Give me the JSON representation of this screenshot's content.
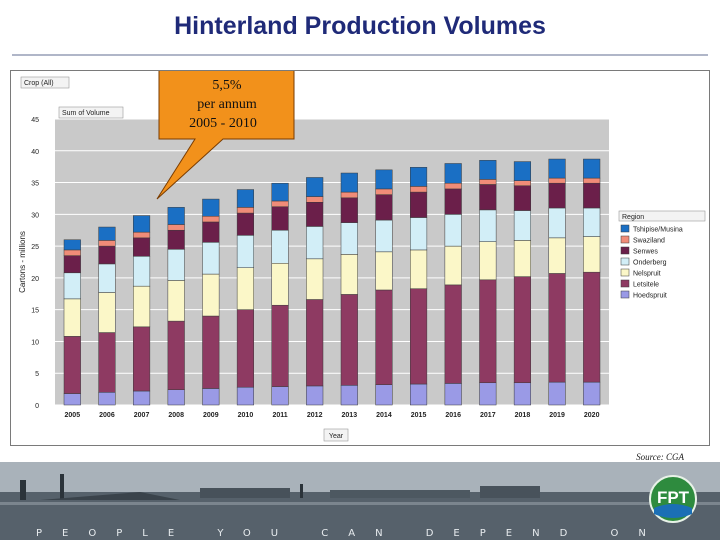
{
  "slide": {
    "title": "Hinterland Production Volumes",
    "source": "Source: CGA",
    "tagline": "PEOPLE YOU CAN DEPEND ON",
    "logo_text": "FPT"
  },
  "callout": {
    "line1": "5,5%",
    "line2": "per annum",
    "line3": "2005 - 2010",
    "color": "#f2911b"
  },
  "chart_data": {
    "type": "bar",
    "stacked": true,
    "filter_label": "Crop (All)",
    "value_field": "Sum of Volume",
    "ylabel": "Cartons - millions",
    "xlabel": "Year",
    "legend_title": "Region",
    "legend_position": "right",
    "grid": true,
    "ylim": [
      0,
      45
    ],
    "yticks": [
      0,
      5,
      10,
      15,
      20,
      25,
      30,
      35,
      40,
      45
    ],
    "categories": [
      "2005",
      "2006",
      "2007",
      "2008",
      "2009",
      "2010",
      "2011",
      "2012",
      "2013",
      "2014",
      "2015",
      "2016",
      "2017",
      "2018",
      "2019",
      "2020"
    ],
    "series": [
      {
        "name": "Hoedspruit",
        "color": "#9a9ae6",
        "values": [
          1.8,
          2.0,
          2.2,
          2.4,
          2.6,
          2.8,
          2.9,
          3.0,
          3.1,
          3.2,
          3.3,
          3.4,
          3.5,
          3.5,
          3.6,
          3.6
        ]
      },
      {
        "name": "Letsitele",
        "color": "#8e3a62",
        "values": [
          9.0,
          9.4,
          10.1,
          10.8,
          11.4,
          12.2,
          12.8,
          13.6,
          14.3,
          14.9,
          15.0,
          15.5,
          16.2,
          16.7,
          17.1,
          17.3
        ]
      },
      {
        "name": "Nelspruit",
        "color": "#fbf7c8",
        "values": [
          5.9,
          6.3,
          6.4,
          6.4,
          6.6,
          6.6,
          6.6,
          6.4,
          6.3,
          6.0,
          6.1,
          6.1,
          6.0,
          5.7,
          5.6,
          5.6
        ]
      },
      {
        "name": "Onderberg",
        "color": "#d2eef7",
        "values": [
          4.1,
          4.5,
          4.7,
          4.9,
          5.0,
          5.1,
          5.2,
          5.1,
          5.0,
          5.0,
          5.1,
          5.0,
          5.0,
          4.7,
          4.7,
          4.5
        ]
      },
      {
        "name": "Senwes",
        "color": "#6b1f4a",
        "values": [
          2.7,
          2.8,
          2.9,
          3.0,
          3.2,
          3.5,
          3.7,
          3.8,
          3.9,
          4.0,
          4.0,
          4.0,
          4.0,
          3.9,
          3.9,
          3.9
        ]
      },
      {
        "name": "Swaziland",
        "color": "#f08c78",
        "values": [
          0.9,
          0.9,
          0.9,
          0.9,
          0.9,
          0.9,
          0.9,
          0.9,
          0.9,
          0.9,
          0.9,
          0.9,
          0.8,
          0.8,
          0.8,
          0.8
        ]
      },
      {
        "name": "Tshipise/Musina",
        "color": "#1a6fc4",
        "values": [
          1.6,
          2.1,
          2.6,
          2.7,
          2.7,
          2.8,
          2.8,
          3.0,
          3.0,
          3.0,
          3.0,
          3.1,
          3.0,
          3.0,
          3.0,
          3.0
        ]
      }
    ]
  }
}
